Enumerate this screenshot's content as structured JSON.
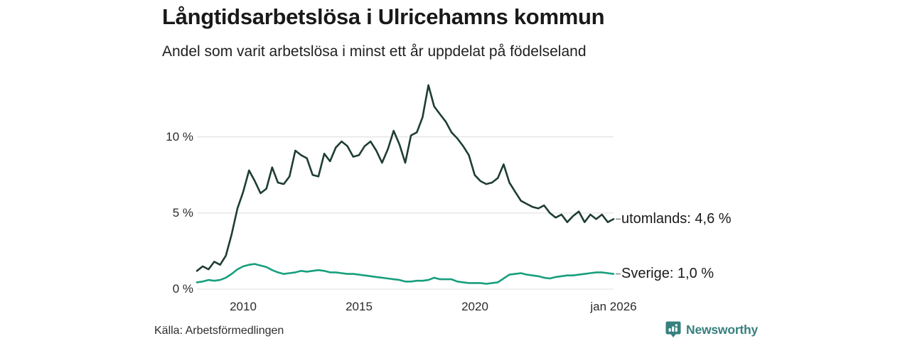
{
  "header": {
    "title": "Långtidsarbetslösa i Ulricehamns kommun",
    "subtitle": "Andel som varit arbetslösa i minst ett år uppdelat på födelseland"
  },
  "chart_data": {
    "type": "line",
    "title": "Långtidsarbetslösa i Ulricehamns kommun",
    "subtitle": "Andel som varit arbetslösa i minst ett år uppdelat på födelseland",
    "xlabel": "",
    "ylabel": "",
    "x_range": [
      2008,
      2026
    ],
    "ylim": [
      0,
      14
    ],
    "yticks": [
      0,
      5,
      10
    ],
    "ytick_labels": [
      "0 %",
      "5 %",
      "10 %"
    ],
    "xticks": [
      2010,
      2015,
      2020,
      2026
    ],
    "xtick_labels": [
      "2010",
      "2015",
      "2020",
      "jan 2026"
    ],
    "grid": "horizontal",
    "grid_color": "#dcdcdc",
    "connector_color": "#8a8a8a",
    "legend_position": "right-of-line-end",
    "x": [
      2008,
      2008.25,
      2008.5,
      2008.75,
      2009,
      2009.25,
      2009.5,
      2009.75,
      2010,
      2010.25,
      2010.5,
      2010.75,
      2011,
      2011.25,
      2011.5,
      2011.75,
      2012,
      2012.25,
      2012.5,
      2012.75,
      2013,
      2013.25,
      2013.5,
      2013.75,
      2014,
      2014.25,
      2014.5,
      2014.75,
      2015,
      2015.25,
      2015.5,
      2015.75,
      2016,
      2016.25,
      2016.5,
      2016.75,
      2017,
      2017.25,
      2017.5,
      2017.75,
      2018,
      2018.25,
      2018.5,
      2018.75,
      2019,
      2019.25,
      2019.5,
      2019.75,
      2020,
      2020.25,
      2020.5,
      2020.75,
      2021,
      2021.25,
      2021.5,
      2021.75,
      2022,
      2022.25,
      2022.5,
      2022.75,
      2023,
      2023.25,
      2023.5,
      2023.75,
      2024,
      2024.25,
      2024.5,
      2024.75,
      2025,
      2025.25,
      2025.5,
      2025.75,
      2026
    ],
    "series": [
      {
        "name": "utomlands",
        "label": "utomlands: 4,6 %",
        "end_value": "4,6 %",
        "color": "#1e3d34",
        "values": [
          1.2,
          1.5,
          1.3,
          1.8,
          1.6,
          2.2,
          3.6,
          5.3,
          6.4,
          7.8,
          7.1,
          6.3,
          6.6,
          8.0,
          7.0,
          6.9,
          7.4,
          9.1,
          8.8,
          8.6,
          7.5,
          7.4,
          8.9,
          8.4,
          9.3,
          9.7,
          9.4,
          8.7,
          8.8,
          9.4,
          9.7,
          9.1,
          8.3,
          9.2,
          10.4,
          9.5,
          8.3,
          10.1,
          10.3,
          11.3,
          13.4,
          12.0,
          11.5,
          11.0,
          10.3,
          9.9,
          9.4,
          8.8,
          7.5,
          7.1,
          6.9,
          7.0,
          7.3,
          8.2,
          7.0,
          6.4,
          5.8,
          5.6,
          5.4,
          5.3,
          5.5,
          5.0,
          4.7,
          4.9,
          4.4,
          4.8,
          5.1,
          4.4,
          4.9,
          4.6,
          4.9,
          4.4,
          4.6
        ]
      },
      {
        "name": "Sverige",
        "label": "Sverige: 1,0 %",
        "end_value": "1,0 %",
        "color": "#189f7d",
        "values": [
          0.45,
          0.5,
          0.6,
          0.55,
          0.6,
          0.75,
          1.0,
          1.3,
          1.5,
          1.6,
          1.65,
          1.55,
          1.45,
          1.25,
          1.1,
          1.0,
          1.05,
          1.1,
          1.2,
          1.15,
          1.2,
          1.25,
          1.2,
          1.1,
          1.1,
          1.05,
          1.0,
          1.0,
          0.95,
          0.9,
          0.85,
          0.8,
          0.75,
          0.7,
          0.65,
          0.6,
          0.5,
          0.5,
          0.55,
          0.55,
          0.6,
          0.75,
          0.65,
          0.65,
          0.65,
          0.5,
          0.45,
          0.4,
          0.4,
          0.4,
          0.35,
          0.4,
          0.45,
          0.7,
          0.95,
          1.0,
          1.05,
          0.95,
          0.9,
          0.85,
          0.75,
          0.7,
          0.8,
          0.85,
          0.9,
          0.9,
          0.95,
          1.0,
          1.05,
          1.1,
          1.1,
          1.05,
          1.0
        ]
      }
    ]
  },
  "footer": {
    "source": "Källa: Arbetsförmedlingen",
    "brand": "Newsworthy"
  },
  "brand_colors": {
    "teal": "#36807d",
    "icon_bg": "#36807d",
    "icon_bars": "#ffffff"
  }
}
